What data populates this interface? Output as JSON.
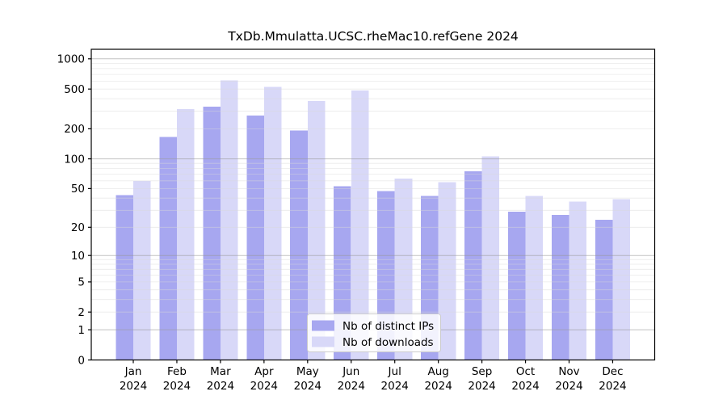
{
  "chart_data": {
    "type": "bar",
    "title": "TxDb.Mmulatta.UCSC.rheMac10.refGene 2024",
    "categories": [
      "Jan",
      "Feb",
      "Mar",
      "Apr",
      "May",
      "Jun",
      "Jul",
      "Aug",
      "Sep",
      "Oct",
      "Nov",
      "Dec"
    ],
    "year_label": "2024",
    "series": [
      {
        "name": "Nb of distinct IPs",
        "color": "#a7a7f0",
        "values": [
          43,
          166,
          334,
          272,
          193,
          53,
          47,
          42,
          75,
          29,
          27,
          24
        ]
      },
      {
        "name": "Nb of downloads",
        "color": "#d8d8f8",
        "values": [
          60,
          314,
          611,
          526,
          378,
          485,
          63,
          58,
          106,
          42,
          37,
          39
        ]
      }
    ],
    "y_ticks": [
      0,
      1,
      2,
      5,
      10,
      20,
      50,
      100,
      200,
      500,
      1000
    ],
    "scale": "log1p",
    "ylim": [
      0,
      1250
    ],
    "xlabel": "",
    "ylabel": "",
    "grid": true,
    "legend_position": "lower center",
    "colors": {
      "spine": "#000000",
      "major_grid": "#999999",
      "minor_grid": "#d9d9d9",
      "text": "#000000",
      "legend_border": "#cccccc",
      "legend_bg": "#ffffff"
    }
  }
}
